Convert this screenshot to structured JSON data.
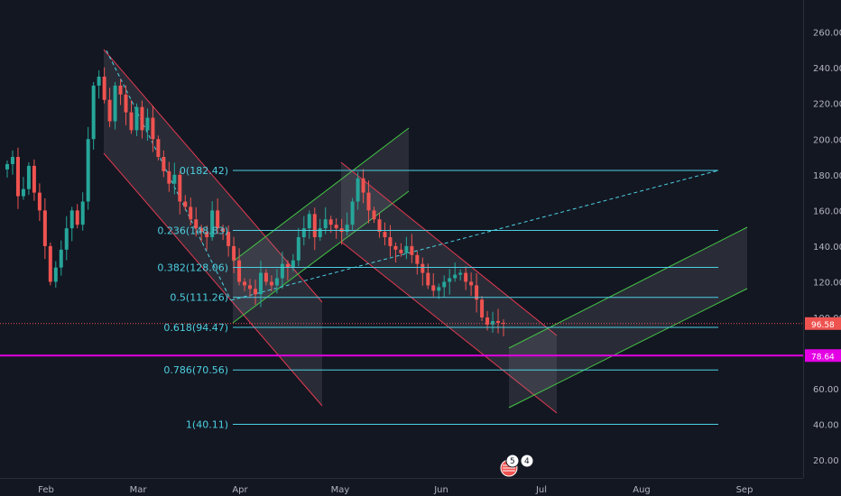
{
  "colors": {
    "background": "#131722",
    "up": "#26a69a",
    "down": "#ef5350",
    "fib": "#4dd0e1",
    "channel_red": "#e53950",
    "channel_green": "#43c743",
    "magenta": "#e400e4",
    "price_badge": "#ef5350",
    "support_badge": "#e400e4",
    "dashed": "#4dd0e1"
  },
  "chart_data": {
    "type": "candlestick",
    "x_axis": {
      "tick_labels": [
        "Feb",
        "Mar",
        "Apr",
        "May",
        "Jun",
        "Jul",
        "Aug",
        "Sep"
      ]
    },
    "y_axis": {
      "range": [
        10,
        278
      ],
      "tick_labels": [
        "260.00",
        "240.00",
        "220.00",
        "200.00",
        "180.00",
        "160.00",
        "140.00",
        "120.00",
        "100.00",
        "80.00",
        "60.00",
        "40.00",
        "20.00"
      ],
      "tick_values": [
        260,
        240,
        220,
        200,
        180,
        160,
        140,
        120,
        100,
        80,
        60,
        40,
        20
      ]
    },
    "price_badges": [
      {
        "name": "current",
        "label": "96.58",
        "value": 96.58
      },
      {
        "name": "support",
        "label": "78.64",
        "value": 78.64
      }
    ],
    "fibonacci": [
      {
        "label": "0(182.42)",
        "value": 182.42
      },
      {
        "label": "0.236(148.83)",
        "value": 148.83
      },
      {
        "label": "0.382(128.06)",
        "value": 128.06
      },
      {
        "label": "0.5(111.26)",
        "value": 111.26
      },
      {
        "label": "0.618(94.47)",
        "value": 94.47
      },
      {
        "label": "0.786(70.56)",
        "value": 70.56
      },
      {
        "label": "1(40.11)",
        "value": 40.11
      }
    ],
    "indicator_badge": {
      "main": "5",
      "sub": "4"
    },
    "candles_close": [
      186,
      190,
      168,
      172,
      185,
      170,
      160,
      140,
      120,
      128,
      138,
      150,
      160,
      152,
      165,
      200,
      230,
      235,
      222,
      210,
      230,
      225,
      215,
      205,
      218,
      205,
      212,
      200,
      190,
      182,
      175,
      180,
      165,
      162,
      155,
      150,
      148,
      145,
      160,
      150,
      148,
      140,
      132,
      120,
      118,
      116,
      113,
      125,
      120,
      118,
      122,
      130,
      128,
      132,
      145,
      150,
      158,
      145,
      150,
      155,
      152,
      150,
      148,
      152,
      165,
      178,
      170,
      160,
      155,
      148,
      145,
      140,
      138,
      136,
      140,
      135,
      130,
      125,
      118,
      115,
      117,
      120,
      122,
      124,
      125,
      120,
      118,
      110,
      100,
      96,
      98,
      97,
      96.58
    ]
  }
}
